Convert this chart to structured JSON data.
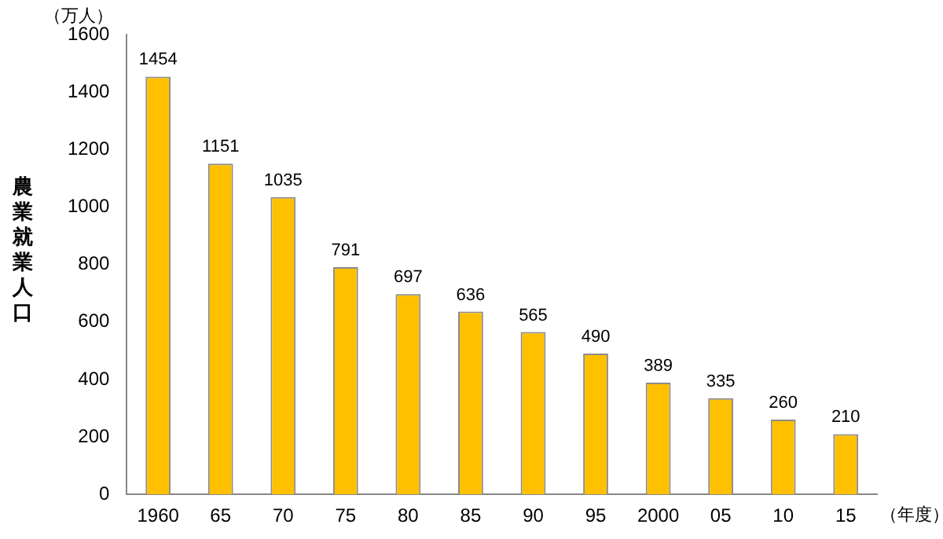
{
  "chart_data": {
    "type": "bar",
    "ylabel": "農業就業人口",
    "xlabel": "（年度）",
    "annotations": [
      "（万人）"
    ],
    "categories": [
      "1960",
      "65",
      "70",
      "75",
      "80",
      "85",
      "90",
      "95",
      "2000",
      "05",
      "10",
      "15"
    ],
    "values": [
      1454,
      1151,
      1035,
      791,
      697,
      636,
      565,
      490,
      389,
      335,
      260,
      210
    ],
    "color": "#ffc000",
    "ylim": [
      0,
      1600
    ],
    "yticks": [
      0,
      200,
      400,
      600,
      800,
      1000,
      1200,
      1400,
      1600
    ],
    "grid": false,
    "legend": false,
    "data_labels": true
  }
}
